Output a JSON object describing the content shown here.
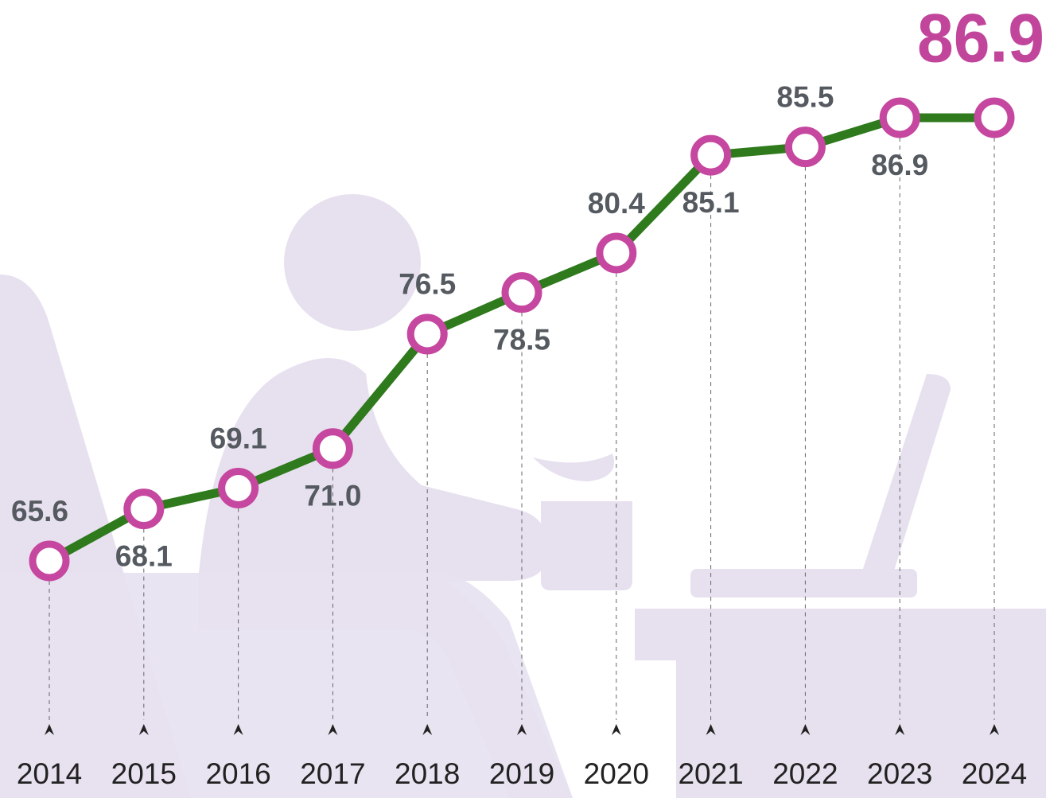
{
  "chart_data": {
    "type": "line",
    "categories": [
      "2014",
      "2015",
      "2016",
      "2017",
      "2018",
      "2019",
      "2020",
      "2021",
      "2022",
      "2023",
      "2024"
    ],
    "values": [
      65.6,
      68.1,
      69.1,
      71.0,
      76.5,
      78.5,
      80.4,
      85.1,
      85.5,
      86.9,
      86.9
    ],
    "value_labels": [
      "65.6",
      "68.1",
      "69.1",
      "71.0",
      "76.5",
      "78.5",
      "80.4",
      "85.1",
      "85.5",
      "86.9",
      "86.9"
    ],
    "color": "#2e7a1c",
    "marker_color": "#c6479f",
    "label_color": "#555a60",
    "highlight_color": "#c2459c"
  }
}
